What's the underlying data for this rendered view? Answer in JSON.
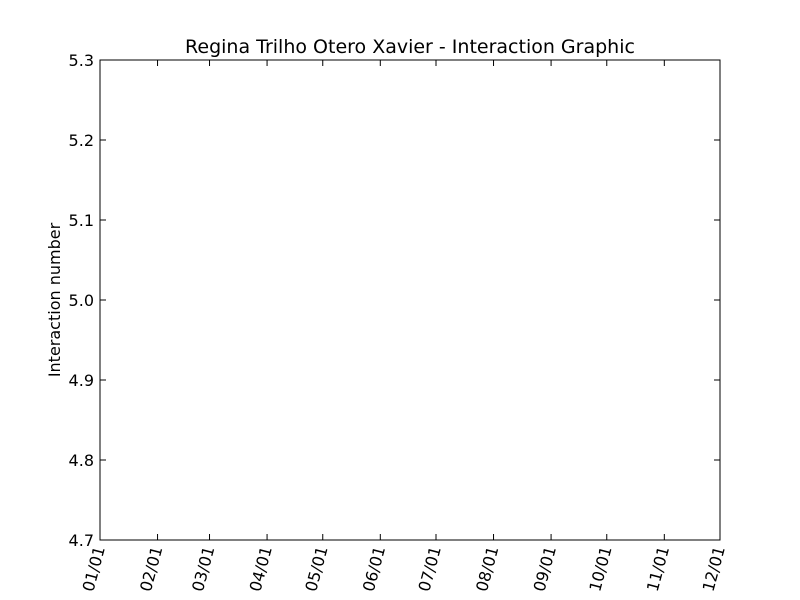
{
  "chart_data": {
    "type": "line",
    "title": "Regina Trilho Otero Xavier - Interaction Graphic",
    "xlabel": "",
    "ylabel": "Interaction number",
    "x_tick_labels": [
      "01/01",
      "02/01",
      "03/01",
      "04/01",
      "05/01",
      "06/01",
      "07/01",
      "08/01",
      "09/01",
      "10/01",
      "11/01",
      "12/01"
    ],
    "x_tick_dates": [
      "2015-01-01",
      "2015-02-01",
      "2015-03-01",
      "2015-04-01",
      "2015-05-01",
      "2015-06-01",
      "2015-07-01",
      "2015-08-01",
      "2015-09-01",
      "2015-10-01",
      "2015-11-01",
      "2015-12-01"
    ],
    "xlim": [
      "2015-01-01",
      "2015-12-01"
    ],
    "y_tick_labels": [
      "4.7",
      "4.8",
      "4.9",
      "5.0",
      "5.1",
      "5.2",
      "5.3"
    ],
    "y_ticks": [
      4.7,
      4.8,
      4.9,
      5.0,
      5.1,
      5.2,
      5.3
    ],
    "ylim": [
      4.7,
      5.3
    ],
    "series": [],
    "grid": false,
    "colors": {
      "frame": "#000000",
      "background": "#ffffff"
    }
  }
}
